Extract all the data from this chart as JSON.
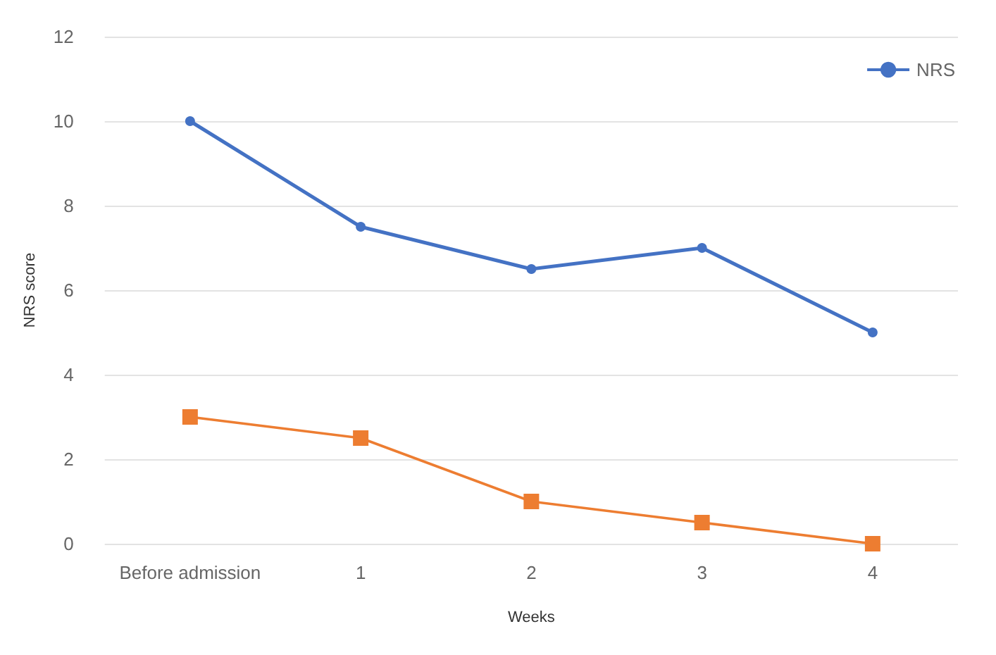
{
  "chart_data": {
    "type": "line",
    "xlabel": "Weeks",
    "ylabel": "NRS score",
    "categories": [
      "Before admission",
      "1",
      "2",
      "3",
      "4"
    ],
    "series": [
      {
        "name": "NRS",
        "color": "#4472c4",
        "marker": "circle",
        "values": [
          10,
          7.5,
          6.5,
          7,
          5
        ]
      },
      {
        "color": "#ed7d31",
        "marker": "square",
        "values": [
          3,
          2.5,
          1,
          0.5,
          0
        ]
      }
    ],
    "ylim": [
      0,
      12
    ],
    "yticks": [
      0,
      2,
      4,
      6,
      8,
      10,
      12
    ],
    "grid": "y",
    "legend": "top right"
  }
}
